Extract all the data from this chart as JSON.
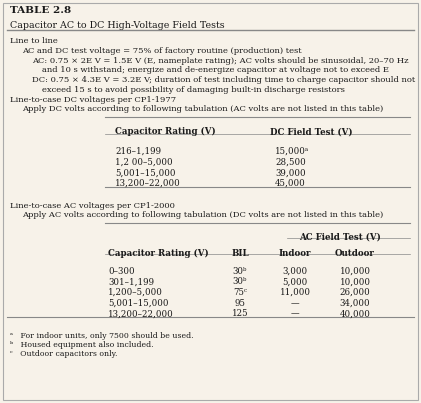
{
  "title": "TABLE 2.8",
  "subtitle": "Capacitor AC to DC High-Voltage Field Tests",
  "body_text": [
    {
      "indent": 0,
      "text": "Line to line"
    },
    {
      "indent": 1,
      "text": "AC and DC test voltage = 75% of factory routine (production) test"
    },
    {
      "indent": 2,
      "text": "AC: 0.75 × 2E V = 1.5E V (E, nameplate rating); AC volts should be sinusoidal, 20–70 Hz"
    },
    {
      "indent": 3,
      "text": "and 10 s withstand; energize and de-energize capacitor at voltage not to exceed E"
    },
    {
      "indent": 2,
      "text": "DC: 0.75 × 4.3E V = 3.2E V; duration of test including time to charge capacitor should not"
    },
    {
      "indent": 3,
      "text": "exceed 15 s to avoid possibility of damaging built-in discharge resistors"
    },
    {
      "indent": 0,
      "text": "Line-to-case DC voltages per CP1-1977"
    },
    {
      "indent": 1,
      "text": "Apply DC volts according to following tabulation (AC volts are not listed in this table)"
    }
  ],
  "table1_headers": [
    "Capacitor Rating (V)",
    "DC Field Test (V)"
  ],
  "table1_rows": [
    [
      "216–1,199",
      "15,000ᵃ"
    ],
    [
      "1,2 00–5,000",
      "28,500"
    ],
    [
      "5,001–15,000",
      "39,000"
    ],
    [
      "13,200–22,000",
      "45,000"
    ]
  ],
  "mid_text": [
    {
      "indent": 0,
      "text": "Line-to-case AC voltages per CP1-2000"
    },
    {
      "indent": 1,
      "text": "Apply AC volts according to following tabulation (DC volts are not listed in this table)"
    }
  ],
  "table2_header_group": "AC Field Test (V)",
  "table2_headers": [
    "Capacitor Rating (V)",
    "BIL",
    "Indoor",
    "Outdoor"
  ],
  "table2_rows": [
    [
      "0–300",
      "30ᵇ",
      "3,000",
      "10,000"
    ],
    [
      "301–1,199",
      "30ᵇ",
      "5,000",
      "10,000"
    ],
    [
      "1,200–5,000",
      "75ᶜ",
      "11,000",
      "26,000"
    ],
    [
      "5,001–15,000",
      "95",
      "—",
      "34,000"
    ],
    [
      "13,200–22,000",
      "125",
      "—",
      "40,000"
    ]
  ],
  "footnotes": [
    "ᵃ   For indoor units, only 7500 should be used.",
    "ᵇ   Housed equipment also included.",
    "ᶜ   Outdoor capacitors only."
  ],
  "bg_color": "#f7f2e9",
  "border_color": "#888888",
  "text_color": "#1a1a1a",
  "fs_title": 7.5,
  "fs_subtitle": 6.8,
  "fs_body": 6.0,
  "fs_table": 6.2,
  "fs_foot": 5.6
}
